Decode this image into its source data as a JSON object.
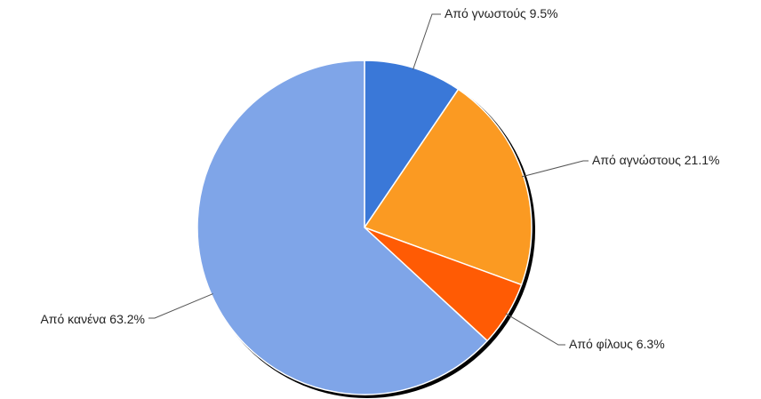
{
  "chart_data": {
    "type": "pie",
    "slices": [
      {
        "label": "Από γνωστούς",
        "value": 9.5,
        "display": "Από γνωστούς 9.5%",
        "color": "#3a78d8"
      },
      {
        "label": "Από αγνώστους",
        "value": 21.1,
        "display": "Από αγνώστους 21.1%",
        "color": "#fb9a22"
      },
      {
        "label": "Από φίλους",
        "value": 6.3,
        "display": "Από φίλους 6.3%",
        "color": "#ff5b04"
      },
      {
        "label": "Από κανένα",
        "value": 63.2,
        "display": "Από κανένα 63.2%",
        "color": "#7fa5e8"
      }
    ],
    "start_angle": "12 o'clock",
    "direction": "clockwise",
    "labels": "outside with leader lines",
    "legend": "none",
    "shadow": true
  }
}
